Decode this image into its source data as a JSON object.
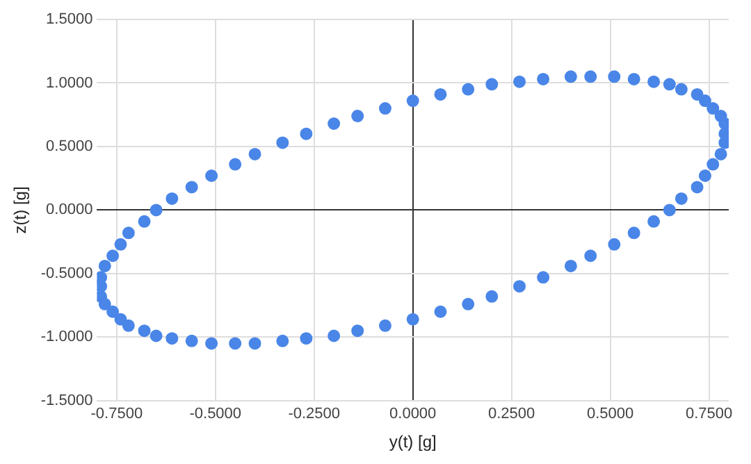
{
  "chart_data": {
    "type": "scatter",
    "xlabel": "y(t) [g]",
    "ylabel": "z(t) [g]",
    "marker": "circle",
    "grid": true,
    "legend": false,
    "xlim": [
      -0.8,
      0.8
    ],
    "xticks": [
      {
        "value": -0.75,
        "label": "-0.7500"
      },
      {
        "value": -0.5,
        "label": "-0.5000"
      },
      {
        "value": -0.25,
        "label": "-0.2500"
      },
      {
        "value": 0,
        "label": "0.0000"
      },
      {
        "value": 0.25,
        "label": "0.2500"
      },
      {
        "value": 0.5,
        "label": "0.5000"
      },
      {
        "value": 0.75,
        "label": "0.7500"
      }
    ],
    "ylim": [
      -1.5,
      1.5
    ],
    "yticks": [
      {
        "value": -1.5,
        "label": "-1.5000"
      },
      {
        "value": -1,
        "label": "-1.0000"
      },
      {
        "value": -0.5,
        "label": "-0.5000"
      },
      {
        "value": 0,
        "label": "0.0000"
      },
      {
        "value": 0.5,
        "label": "0.5000"
      },
      {
        "value": 1,
        "label": "1.0000"
      },
      {
        "value": 1.5,
        "label": "1.5000"
      }
    ],
    "series": [
      {
        "color": "#4a86e8",
        "x": [
          0,
          0.07,
          0.14,
          0.2,
          0.27,
          0.33,
          0.4,
          0.45,
          0.51,
          0.56,
          0.61,
          0.65,
          0.68,
          0.72,
          0.74,
          0.76,
          0.78,
          0.79,
          0.79,
          0.79,
          0.78,
          0.76,
          0.74,
          0.72,
          0.68,
          0.65,
          0.61,
          0.56,
          0.51,
          0.45,
          0.4,
          0.33,
          0.27,
          0.2,
          0.14,
          0.07,
          0,
          -0.07,
          -0.14,
          -0.2,
          -0.27,
          -0.33,
          -0.4,
          -0.45,
          -0.51,
          -0.56,
          -0.61,
          -0.65,
          -0.68,
          -0.72,
          -0.74,
          -0.76,
          -0.78,
          -0.79,
          -0.79,
          -0.79,
          -0.78,
          -0.76,
          -0.74,
          -0.72,
          -0.68,
          -0.65,
          -0.61,
          -0.56,
          -0.51,
          -0.45,
          -0.4,
          -0.33,
          -0.27,
          -0.2,
          -0.14,
          -0.07
        ],
        "values": [
          0.86,
          0.91,
          0.95,
          0.99,
          1.01,
          1.03,
          1.05,
          1.05,
          1.05,
          1.03,
          1.01,
          0.99,
          0.95,
          0.91,
          0.86,
          0.8,
          0.74,
          0.68,
          0.6,
          0.53,
          0.44,
          0.36,
          0.27,
          0.18,
          0.09,
          0,
          -0.09,
          -0.18,
          -0.27,
          -0.36,
          -0.44,
          -0.53,
          -0.6,
          -0.68,
          -0.74,
          -0.8,
          -0.86,
          -0.91,
          -0.95,
          -0.99,
          -1.01,
          -1.03,
          -1.05,
          -1.05,
          -1.05,
          -1.03,
          -1.01,
          -0.99,
          -0.95,
          -0.91,
          -0.86,
          -0.8,
          -0.74,
          -0.68,
          -0.6,
          -0.53,
          -0.44,
          -0.36,
          -0.27,
          -0.18,
          -0.09,
          0,
          0.09,
          0.18,
          0.27,
          0.36,
          0.44,
          0.53,
          0.6,
          0.68,
          0.74,
          0.8
        ]
      }
    ]
  }
}
